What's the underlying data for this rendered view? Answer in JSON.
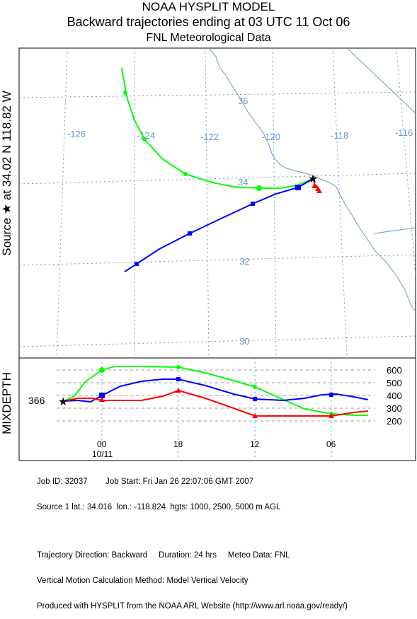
{
  "header": {
    "line1": "NOAA HYSPLIT MODEL",
    "line2": "Backward trajectories ending at 03 UTC 11 Oct 06",
    "line3": "FNL  Meteorological Data"
  },
  "side_label": "Source ★ at  34.02 N  118.82 W",
  "mixdepth_label": "MIXDEPTH",
  "source_height_label": "366",
  "colors": {
    "series_100m": "#ff0000",
    "series_2500m": "#0000ff",
    "series_5000m": "#00ff00",
    "coast": "#6699cc",
    "grid": "#6699cc",
    "frame": "#000000"
  },
  "chart_data": [
    {
      "type": "line",
      "title": "Backward trajectories ending at 03 UTC 11 Oct 06",
      "subtitle": "FNL  Meteorological Data",
      "longitude_ticks": [
        "-126",
        "-124",
        "-122",
        "-120",
        "-118",
        "-116"
      ],
      "latitude_ticks": [
        "36",
        "34",
        "32",
        "30"
      ],
      "source": {
        "lat": 34.016,
        "lon": -118.824
      },
      "series": [
        {
          "color": "#00ff00",
          "lon": [
            -124.6,
            -124.5,
            -124.4,
            -124.3,
            -124.1,
            -123.6,
            -122.6,
            -121.4,
            -120.4,
            -119.7,
            -119.2,
            -118.8
          ],
          "lat": [
            35.9,
            35.65,
            35.4,
            35.1,
            34.8,
            34.45,
            34.1,
            33.9,
            33.85,
            33.9,
            33.95,
            34.02
          ]
        },
        {
          "color": "#0000ff",
          "lon": [
            -124.8,
            -124.5,
            -123.9,
            -122.6,
            -121.4,
            -120.5,
            -119.4,
            -119.0,
            -118.8
          ],
          "lat": [
            32.35,
            32.55,
            32.8,
            33.3,
            33.75,
            34.02,
            33.9,
            33.95,
            34.02
          ]
        },
        {
          "color": "#ff0000",
          "lon": [
            -118.8,
            -118.85,
            -118.8,
            -118.75,
            -118.7
          ],
          "lat": [
            34.02,
            33.92,
            33.85,
            33.8,
            33.75
          ]
        }
      ]
    },
    {
      "type": "line",
      "ylabel": "MIXDEPTH",
      "x_ticks": [
        "00",
        "18",
        "12",
        "06"
      ],
      "x_sublabel": "10/11",
      "y_ticks": [
        "600",
        "500",
        "400",
        "300",
        "200"
      ],
      "series": [
        {
          "color": "#00ff00",
          "x_hours_before": [
            24,
            23,
            22,
            21,
            20,
            19,
            18,
            12,
            9,
            6,
            3,
            0
          ],
          "values": [
            366,
            400,
            520,
            600,
            640,
            640,
            640,
            600,
            480,
            300,
            240,
            240
          ]
        },
        {
          "color": "#0000ff",
          "x_hours_before": [
            24,
            23,
            22,
            21,
            20,
            18,
            15,
            12,
            9,
            6,
            3,
            0
          ],
          "values": [
            366,
            360,
            370,
            400,
            410,
            480,
            520,
            480,
            380,
            360,
            400,
            366
          ]
        },
        {
          "color": "#ff0000",
          "x_hours_before": [
            24,
            23,
            21,
            19,
            18,
            15,
            12,
            9,
            6,
            3,
            0
          ],
          "values": [
            366,
            370,
            370,
            370,
            366,
            400,
            440,
            360,
            240,
            240,
            280
          ]
        }
      ]
    }
  ],
  "footer": {
    "line1": "Job ID: 32037        Job Start: Fri Jan 26 22:07:06 GMT 2007",
    "line2": "Source 1 lat.: 34.016  lon.: -118.824  hgts: 1000, 2500, 5000 m AGL",
    "line3": "Trajectory Direction: Backward     Duration: 24 hrs     Meteo Data: FNL",
    "line4": "Vertical Motion Calculation Method: Model Vertical Velocity",
    "line5": "Produced with HYSPLIT from the NOAA ARL Website (http://www.arl.noaa.gov/ready/)"
  }
}
